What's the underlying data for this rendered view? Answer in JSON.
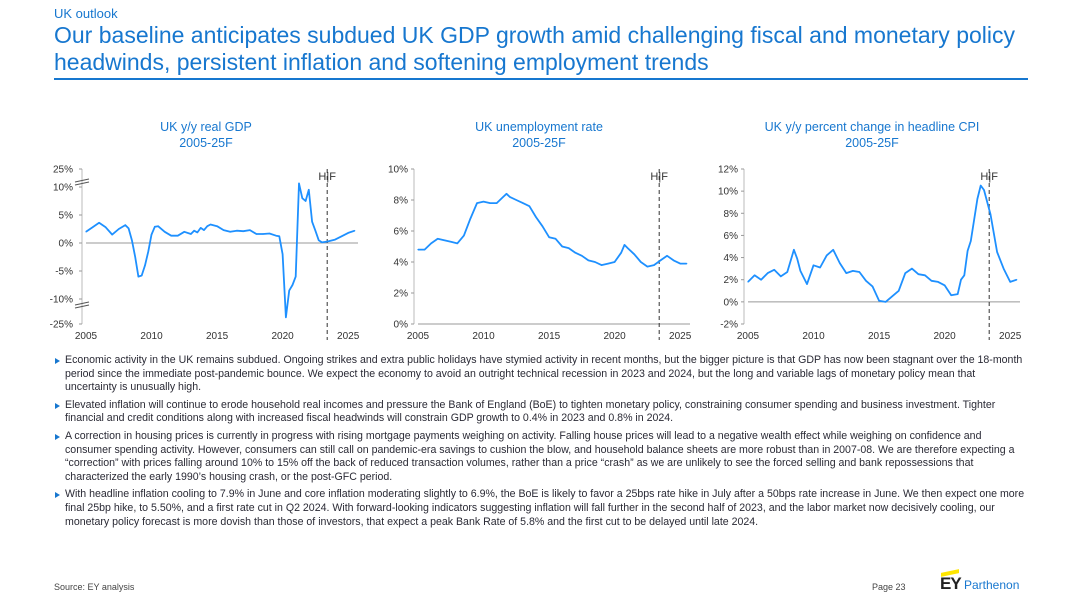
{
  "header": {
    "eyebrow": "UK outlook",
    "headline": "Our baseline anticipates subdued UK GDP growth amid challenging fiscal and monetary policy headwinds, persistent inflation and softening employment trends"
  },
  "colors": {
    "accent": "#1777cf",
    "series": "#1e90ff",
    "text": "#1a1a24"
  },
  "chart_data": [
    {
      "type": "line",
      "title": "UK y/y real GDP",
      "subtitle": "2005-25F",
      "forecast_label": "H|F",
      "forecast_x": 2023.4,
      "x_range": [
        2005,
        2025.75
      ],
      "x_ticks": [
        "2005",
        "2010",
        "2015",
        "2020",
        "2025"
      ],
      "y_ticks": [
        "25%",
        "10%",
        "5%",
        "0%",
        "-5%",
        "-10%",
        "-25%"
      ],
      "axis_break": true,
      "x": [
        2005.0,
        2005.5,
        2006.0,
        2006.5,
        2007.0,
        2007.5,
        2008.0,
        2008.25,
        2008.5,
        2008.75,
        2009.0,
        2009.25,
        2009.5,
        2009.75,
        2010.0,
        2010.25,
        2010.5,
        2011.0,
        2011.5,
        2012.0,
        2012.5,
        2013.0,
        2013.25,
        2013.5,
        2013.75,
        2014.0,
        2014.25,
        2014.5,
        2015.0,
        2015.5,
        2016.0,
        2016.5,
        2017.0,
        2017.5,
        2018.0,
        2018.5,
        2019.0,
        2019.5,
        2019.75,
        2020.0,
        2020.25,
        2020.5,
        2020.75,
        2021.0,
        2021.25,
        2021.5,
        2021.75,
        2022.0,
        2022.25,
        2022.5,
        2022.75,
        2023.0,
        2023.25,
        2023.5,
        2024.0,
        2024.5,
        2025.0,
        2025.5
      ],
      "values": [
        2.0,
        2.8,
        3.6,
        2.8,
        1.5,
        2.5,
        3.2,
        2.6,
        0.5,
        -2.5,
        -6.0,
        -5.8,
        -4.0,
        -1.5,
        1.5,
        2.9,
        3.0,
        2.0,
        1.3,
        1.3,
        2.0,
        1.6,
        2.2,
        1.9,
        2.7,
        2.3,
        3.0,
        3.3,
        3.0,
        2.3,
        2.0,
        2.2,
        2.1,
        2.3,
        1.6,
        1.6,
        1.7,
        1.3,
        1.2,
        -2.0,
        -21.0,
        -8.5,
        -7.5,
        -6.0,
        13.0,
        8.0,
        7.5,
        9.5,
        3.8,
        2.2,
        0.5,
        0.1,
        0.2,
        0.3,
        0.6,
        1.2,
        1.8,
        2.2
      ]
    },
    {
      "type": "line",
      "title": "UK unemployment rate",
      "subtitle": "2005-25F",
      "forecast_label": "H|F",
      "forecast_x": 2023.4,
      "x_range": [
        2005,
        2025.75
      ],
      "x_ticks": [
        "2005",
        "2010",
        "2015",
        "2020",
        "2025"
      ],
      "y_ticks": [
        "10%",
        "8%",
        "6%",
        "4%",
        "2%",
        "0%"
      ],
      "ylim": [
        0,
        10
      ],
      "x": [
        2005.0,
        2005.5,
        2006.0,
        2006.5,
        2007.0,
        2007.5,
        2008.0,
        2008.5,
        2009.0,
        2009.5,
        2010.0,
        2010.5,
        2011.0,
        2011.5,
        2011.75,
        2012.0,
        2012.5,
        2013.0,
        2013.5,
        2014.0,
        2014.5,
        2015.0,
        2015.5,
        2016.0,
        2016.5,
        2017.0,
        2017.5,
        2018.0,
        2018.5,
        2019.0,
        2019.5,
        2020.0,
        2020.5,
        2020.75,
        2021.0,
        2021.5,
        2022.0,
        2022.5,
        2023.0,
        2023.5,
        2024.0,
        2024.5,
        2025.0,
        2025.5
      ],
      "values": [
        4.8,
        4.8,
        5.2,
        5.5,
        5.4,
        5.3,
        5.2,
        5.7,
        6.8,
        7.8,
        7.9,
        7.8,
        7.8,
        8.2,
        8.4,
        8.2,
        8.0,
        7.8,
        7.6,
        6.9,
        6.3,
        5.6,
        5.5,
        5.0,
        4.9,
        4.6,
        4.4,
        4.1,
        4.0,
        3.8,
        3.9,
        4.0,
        4.6,
        5.1,
        4.9,
        4.5,
        4.0,
        3.7,
        3.8,
        4.1,
        4.4,
        4.1,
        3.9,
        3.9
      ]
    },
    {
      "type": "line",
      "title": "UK y/y percent change in headline CPI",
      "subtitle": "2005-25F",
      "forecast_label": "H|F",
      "forecast_x": 2023.4,
      "x_range": [
        2005,
        2025.75
      ],
      "x_ticks": [
        "2005",
        "2010",
        "2015",
        "2020",
        "2025"
      ],
      "y_ticks": [
        "12%",
        "10%",
        "8%",
        "6%",
        "4%",
        "2%",
        "0%",
        "-2%"
      ],
      "ylim": [
        -2,
        12
      ],
      "x": [
        2005.0,
        2005.5,
        2006.0,
        2006.5,
        2007.0,
        2007.5,
        2008.0,
        2008.5,
        2008.75,
        2009.0,
        2009.5,
        2010.0,
        2010.5,
        2011.0,
        2011.5,
        2012.0,
        2012.5,
        2013.0,
        2013.5,
        2014.0,
        2014.5,
        2015.0,
        2015.5,
        2016.0,
        2016.5,
        2017.0,
        2017.5,
        2018.0,
        2018.5,
        2019.0,
        2019.5,
        2020.0,
        2020.5,
        2021.0,
        2021.25,
        2021.5,
        2021.75,
        2022.0,
        2022.5,
        2022.75,
        2023.0,
        2023.5,
        2024.0,
        2024.5,
        2025.0,
        2025.5
      ],
      "values": [
        1.8,
        2.4,
        2.0,
        2.6,
        2.9,
        2.3,
        2.7,
        4.7,
        3.9,
        2.8,
        1.6,
        3.3,
        3.1,
        4.2,
        4.7,
        3.5,
        2.6,
        2.8,
        2.7,
        1.9,
        1.4,
        0.1,
        0.0,
        0.5,
        1.0,
        2.6,
        3.0,
        2.5,
        2.4,
        1.9,
        1.8,
        1.5,
        0.6,
        0.7,
        2.0,
        2.4,
        4.6,
        5.5,
        9.3,
        10.5,
        10.1,
        7.9,
        4.5,
        3.0,
        1.8,
        2.0
      ]
    }
  ],
  "bullets": [
    "Economic activity in the UK remains subdued. Ongoing strikes and extra public holidays have stymied activity in recent months, but the bigger picture is that GDP has now been stagnant over the 18-month period since the immediate post-pandemic bounce. We expect the economy to avoid an outright technical recession in 2023 and 2024, but the long and variable lags of monetary policy mean that uncertainty is unusually high.",
    "Elevated inflation will continue to erode household real incomes and pressure the Bank of England (BoE) to tighten monetary policy, constraining consumer spending and business investment. Tighter financial and credit conditions along with increased fiscal headwinds will constrain GDP growth to 0.4% in 2023 and 0.8% in 2024.",
    "A correction in housing prices is currently in progress with rising mortgage payments weighing on activity. Falling house prices will lead to a negative wealth effect while weighing on confidence and consumer spending activity. However, consumers can still call on pandemic-era savings to cushion the blow, and household balance sheets are more robust than in 2007-08. We are therefore expecting a “correction” with prices falling around 10% to 15% off the back of reduced transaction volumes, rather than a price “crash” as we are unlikely to see the forced selling and bank repossessions that characterized the early 1990’s housing crash, or the post-GFC period.",
    "With headline inflation cooling to 7.9% in June and core inflation moderating slightly to 6.9%, the BoE is likely to favor a 25bps rate hike in July after a 50bps rate increase in June. We then expect one more final 25bp hike, to 5.50%, and a first rate cut in Q2 2024. With forward-looking indicators suggesting inflation will fall further in the second half of 2023, and the labor market now decisively cooling, our monetary policy forecast is more dovish than those of investors, that expect a peak Bank Rate of 5.8% and the first cut to be delayed until late 2024."
  ],
  "footer": {
    "source": "Source: EY analysis",
    "page": "Page 23",
    "logo_ey": "EY",
    "logo_brand": "Parthenon"
  }
}
